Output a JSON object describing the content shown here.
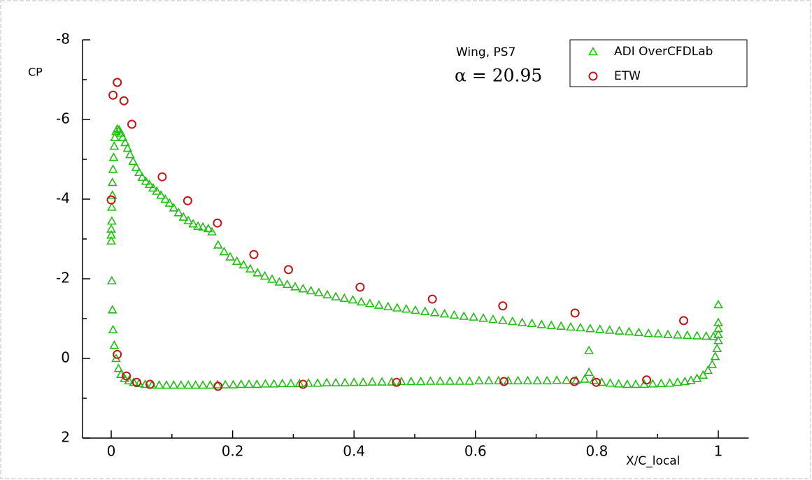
{
  "chart_data": {
    "type": "scatter",
    "ylabel": "CP",
    "xlabel": "X/C_local",
    "annotations": [
      "Wing, PS7",
      "α = 20.95"
    ],
    "xlim": [
      -0.05,
      1.05
    ],
    "xticks": [
      0,
      0.2,
      0.4,
      0.6,
      0.8,
      1
    ],
    "xminorticks": [
      0.1,
      0.3,
      0.5,
      0.7,
      0.9
    ],
    "ylim": [
      -8,
      2
    ],
    "y_reversed": true,
    "yticks": [
      -8,
      -6,
      -4,
      -2,
      0,
      2
    ],
    "yminorticks": [
      -7,
      -5,
      -3,
      -1,
      1
    ],
    "legend": "upper right",
    "series": [
      {
        "name": "ADI OverCFDLab",
        "color": "#1fbf12",
        "marker": "triangle",
        "x": [
          0,
          0,
          0,
          0.001,
          0.001,
          0.002,
          0.002,
          0.003,
          0.004,
          0.005,
          0.006,
          0.008,
          0.01,
          0.013,
          0.016,
          0.019,
          0.023,
          0.027,
          0.031,
          0.036,
          0.041,
          0.046,
          0.051,
          0.057,
          0.063,
          0.069,
          0.075,
          0.082,
          0.089,
          0.096,
          0.103,
          0.111,
          0.119,
          0.127,
          0.135,
          0.143,
          0.151,
          0.16,
          0.166,
          0.176,
          0.186,
          0.196,
          0.207,
          0.218,
          0.229,
          0.241,
          0.253,
          0.265,
          0.277,
          0.29,
          0.303,
          0.316,
          0.329,
          0.342,
          0.356,
          0.37,
          0.384,
          0.398,
          0.412,
          0.426,
          0.441,
          0.456,
          0.471,
          0.486,
          0.501,
          0.517,
          0.533,
          0.549,
          0.565,
          0.581,
          0.597,
          0.613,
          0.629,
          0.645,
          0.661,
          0.677,
          0.693,
          0.709,
          0.725,
          0.741,
          0.757,
          0.773,
          0.789,
          0.805,
          0.821,
          0.837,
          0.853,
          0.869,
          0.885,
          0.901,
          0.917,
          0.933,
          0.949,
          0.965,
          0.98,
          0.992,
          1,
          1,
          1,
          1,
          0.001,
          0.002,
          0.003,
          0.005,
          0.008,
          0.012,
          0.016,
          0.022,
          0.029,
          0.037,
          0.046,
          0.056,
          0.067,
          0.079,
          0.091,
          0.103,
          0.115,
          0.127,
          0.139,
          0.151,
          0.163,
          0.175,
          0.188,
          0.201,
          0.214,
          0.227,
          0.24,
          0.254,
          0.268,
          0.282,
          0.296,
          0.31,
          0.325,
          0.34,
          0.355,
          0.37,
          0.385,
          0.4,
          0.415,
          0.43,
          0.446,
          0.462,
          0.478,
          0.494,
          0.51,
          0.526,
          0.542,
          0.558,
          0.574,
          0.59,
          0.606,
          0.622,
          0.638,
          0.654,
          0.67,
          0.686,
          0.702,
          0.718,
          0.734,
          0.75,
          0.766,
          0.78,
          0.787,
          0.787,
          0.795,
          0.808,
          0.822,
          0.836,
          0.85,
          0.864,
          0.878,
          0.892,
          0.906,
          0.92,
          0.933,
          0.945,
          0.955,
          0.965,
          0.975,
          0.983,
          0.99,
          0.995,
          0.998,
          1
        ],
        "values": [
          -2.95,
          -3.1,
          -3.25,
          -3.45,
          -3.8,
          -4.1,
          -4.42,
          -4.75,
          -5.05,
          -5.33,
          -5.55,
          -5.7,
          -5.76,
          -5.74,
          -5.66,
          -5.55,
          -5.42,
          -5.28,
          -5.12,
          -4.95,
          -4.8,
          -4.67,
          -4.55,
          -4.45,
          -4.37,
          -4.28,
          -4.2,
          -4.1,
          -4,
          -3.9,
          -3.78,
          -3.66,
          -3.55,
          -3.46,
          -3.38,
          -3.32,
          -3.3,
          -3.26,
          -3.18,
          -2.85,
          -2.68,
          -2.55,
          -2.44,
          -2.35,
          -2.25,
          -2.15,
          -2.07,
          -1.99,
          -1.92,
          -1.86,
          -1.8,
          -1.75,
          -1.7,
          -1.65,
          -1.6,
          -1.55,
          -1.51,
          -1.47,
          -1.42,
          -1.38,
          -1.34,
          -1.3,
          -1.27,
          -1.24,
          -1.21,
          -1.18,
          -1.15,
          -1.12,
          -1.09,
          -1.06,
          -1.04,
          -1.01,
          -0.98,
          -0.95,
          -0.93,
          -0.9,
          -0.88,
          -0.85,
          -0.83,
          -0.81,
          -0.79,
          -0.77,
          -0.75,
          -0.73,
          -0.71,
          -0.69,
          -0.67,
          -0.65,
          -0.63,
          -0.62,
          -0.6,
          -0.59,
          -0.58,
          -0.57,
          -0.56,
          -0.55,
          -0.6,
          -0.75,
          -0.9,
          -1.35,
          -1.95,
          -1.22,
          -0.72,
          -0.33,
          0,
          0.25,
          0.4,
          0.5,
          0.56,
          0.6,
          0.63,
          0.65,
          0.67,
          0.67,
          0.67,
          0.67,
          0.67,
          0.67,
          0.67,
          0.67,
          0.67,
          0.66,
          0.66,
          0.66,
          0.65,
          0.65,
          0.65,
          0.64,
          0.64,
          0.63,
          0.63,
          0.63,
          0.62,
          0.62,
          0.61,
          0.61,
          0.61,
          0.6,
          0.6,
          0.59,
          0.59,
          0.59,
          0.58,
          0.58,
          0.58,
          0.57,
          0.57,
          0.57,
          0.57,
          0.57,
          0.56,
          0.56,
          0.56,
          0.56,
          0.56,
          0.56,
          0.56,
          0.56,
          0.55,
          0.55,
          0.55,
          0.52,
          -0.2,
          0.35,
          0.55,
          0.6,
          0.62,
          0.64,
          0.65,
          0.65,
          0.65,
          0.64,
          0.63,
          0.62,
          0.6,
          0.58,
          0.55,
          0.5,
          0.42,
          0.3,
          0.15,
          -0.05,
          -0.25,
          -0.45
        ]
      },
      {
        "name": "ETW",
        "color": "#c01515",
        "marker": "circle",
        "x": [
          0,
          0.003,
          0.01,
          0.021,
          0.034,
          0.084,
          0.126,
          0.175,
          0.235,
          0.292,
          0.41,
          0.529,
          0.645,
          0.764,
          0.943,
          0.01,
          0.025,
          0.042,
          0.064,
          0.176,
          0.316,
          0.47,
          0.647,
          0.763,
          0.799,
          0.882
        ],
        "values": [
          -3.98,
          -6.61,
          -6.93,
          -6.47,
          -5.88,
          -4.56,
          -3.96,
          -3.4,
          -2.61,
          -2.23,
          -1.79,
          -1.49,
          -1.32,
          -1.14,
          -0.95,
          -0.1,
          0.44,
          0.6,
          0.65,
          0.7,
          0.65,
          0.6,
          0.58,
          0.58,
          0.6,
          0.54
        ]
      }
    ]
  }
}
